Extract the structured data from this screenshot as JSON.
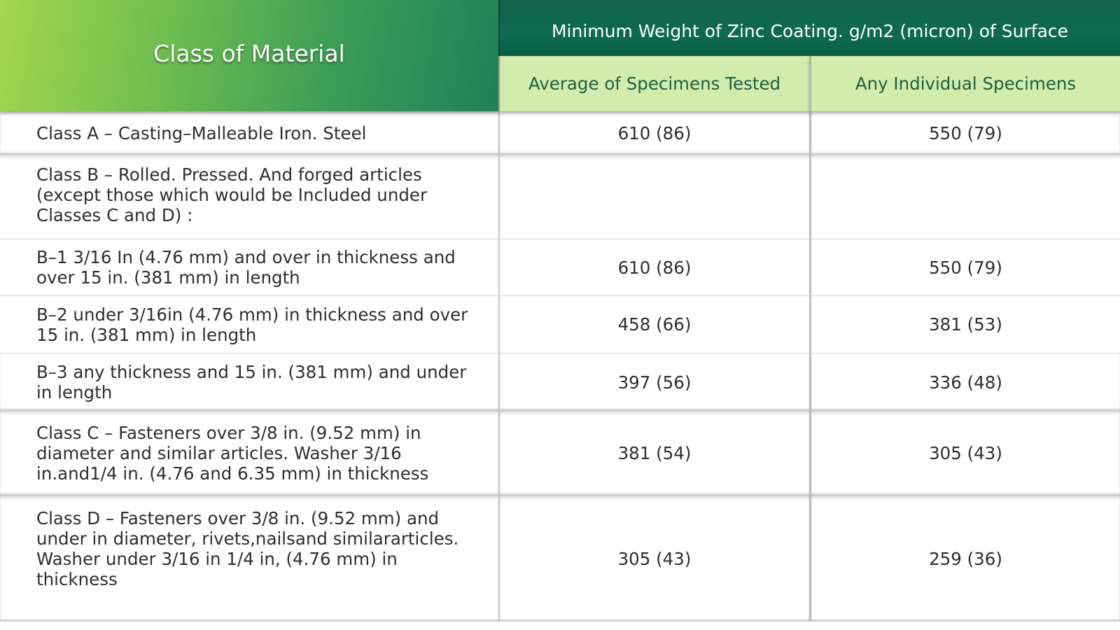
{
  "header": {
    "class_label": "Class of Material",
    "coating_label": "Minimum Weight of Zinc Coating. g/m2 (micron) of Surface",
    "average_label": "Average of Specimens Tested",
    "individual_label": "Any Individual Specimens"
  },
  "rows": [
    {
      "material": "Class A – Casting–Malleable Iron. Steel",
      "average": "610 (86)",
      "individual": "550 (79)"
    },
    {
      "material": "Class B – Rolled. Pressed. And forged articles (except those which would be Included under Classes C and D) :",
      "average": "",
      "individual": ""
    },
    {
      "material": "B–1 3/16 In (4.76 mm) and over in thickness and over 15 in. (381 mm) in length",
      "average": "610 (86)",
      "individual": "550 (79)"
    },
    {
      "material": "B–2 under 3/16in (4.76 mm) in thickness and over 15 in. (381 mm) in length",
      "average": "458 (66)",
      "individual": "381 (53)"
    },
    {
      "material": "B–3 any thickness and 15 in. (381 mm) and under in length",
      "average": "397 (56)",
      "individual": "336 (48)"
    },
    {
      "material": "Class C – Fasteners over 3/8 in. (9.52 mm) in diameter and similar articles. Washer 3/16 in.and1/4 in. (4.76 and 6.35 mm) in thickness",
      "average": "381 (54)",
      "individual": "305 (43)"
    },
    {
      "material": "Class D – Fasteners over 3/8 in. (9.52 mm) and under in diameter, rivets,nailsand similararticles. Washer under 3/16 in 1/4 in, (4.76 mm) in thickness",
      "average": "305 (43)",
      "individual": "259 (36)"
    }
  ],
  "colors": {
    "header_gradient_start": "#a5d64e",
    "header_gradient_end": "#1f7f58",
    "dark_header": "#0d6a50",
    "subheader_bg": "#d1ecac",
    "subheader_text": "#1f5f3f"
  }
}
